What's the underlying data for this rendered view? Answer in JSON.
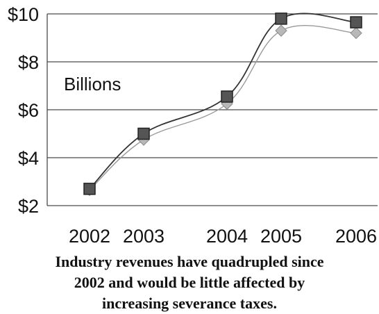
{
  "chart_data": {
    "type": "line",
    "title": "",
    "xlabel": "",
    "ylabel": "",
    "unit_label": "Billions",
    "categories": [
      "2002",
      "2003",
      "2004",
      "2005",
      "2006"
    ],
    "y_ticks": [
      "$2",
      "$4",
      "$6",
      "$8",
      "$10"
    ],
    "ylim": [
      2,
      10
    ],
    "grid": true,
    "legend": "none",
    "series": [
      {
        "marker": "square",
        "color": "#333333",
        "values": [
          2.7,
          5.0,
          6.55,
          9.8,
          9.65
        ]
      },
      {
        "marker": "diamond",
        "color": "#9a9a9a",
        "values": [
          2.65,
          4.75,
          6.25,
          9.3,
          9.2
        ]
      }
    ]
  },
  "caption": {
    "line1": "Industry revenues have quadrupled since",
    "line2": "2002 and would be little affected by",
    "line3": "increasing severance taxes."
  }
}
